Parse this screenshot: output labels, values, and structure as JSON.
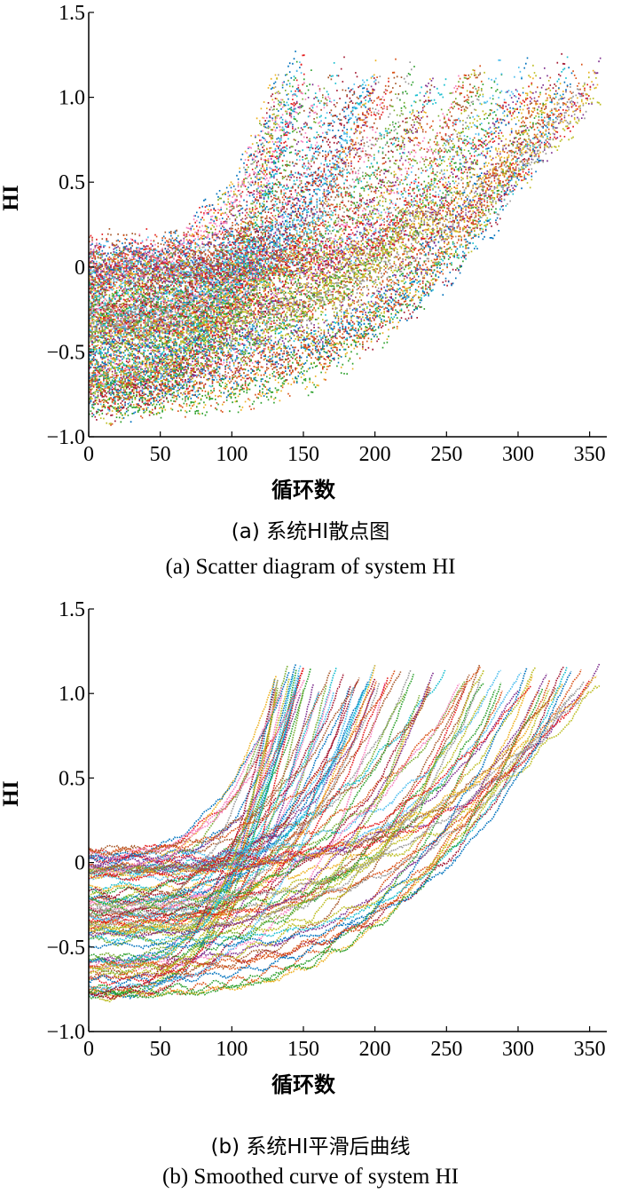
{
  "palette": [
    "#0072BD",
    "#D95319",
    "#EDB120",
    "#7E2F8E",
    "#77AC30",
    "#4DBEEE",
    "#A2142F",
    "#E41A1C",
    "#F781BF",
    "#A65628",
    "#17BECF",
    "#BCBD22",
    "#999999",
    "#2CA02C"
  ],
  "chart_data": [
    {
      "id": "a",
      "type": "scatter",
      "xlabel": "循环数",
      "ylabel": "HI",
      "xlim": [
        0,
        362
      ],
      "ylim": [
        -1.0,
        1.5
      ],
      "xticks": [
        "0",
        "50",
        "100",
        "150",
        "200",
        "250",
        "300",
        "350"
      ],
      "yticks": [
        "1.5",
        "1.0",
        "0.5",
        "0",
        "−0.5",
        "−1.0"
      ],
      "caption_cn": "(a) 系统HI散点图",
      "caption_en": "(a) Scatter diagram of system HI",
      "series_summary": {
        "count": 100,
        "start_cycle": 0,
        "start_hi_range": [
          -0.8,
          0.1
        ],
        "end_hi_range": [
          1.0,
          1.2
        ],
        "end_cycle_range": [
          130,
          362
        ],
        "noise_hi": 0.09
      }
    },
    {
      "id": "b",
      "type": "line",
      "xlabel": "循环数",
      "ylabel": "HI",
      "xlim": [
        0,
        362
      ],
      "ylim": [
        -1.0,
        1.5
      ],
      "xticks": [
        "0",
        "50",
        "100",
        "150",
        "200",
        "250",
        "300",
        "350"
      ],
      "yticks": [
        "1.5",
        "1.0",
        "0.5",
        "0",
        "−0.5",
        "−1.0"
      ],
      "caption_cn": "(b) 系统HI平滑后曲线",
      "caption_en": "(b) Smoothed curve of system HI",
      "series_summary": {
        "count": 100,
        "start_cycle": 0,
        "start_hi_range": [
          -0.8,
          0.1
        ],
        "end_hi_range": [
          1.0,
          1.2
        ],
        "end_cycle_range": [
          130,
          362
        ],
        "noise_hi": 0.03
      }
    }
  ]
}
